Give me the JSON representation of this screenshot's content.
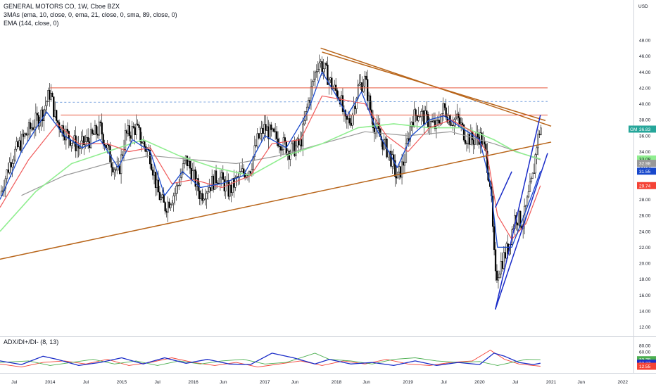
{
  "header": {
    "title": "GENERAL MOTORS CO, 1W, Cboe BZX",
    "indicator_1": "3MAs (ema, 10, close, 0, ema, 21, close, 0, sma, 89, close, 0)",
    "indicator_2": "EMA (144, close, 0)"
  },
  "sub_header": "ADX/DI+/DI- (8, 13)",
  "currency": "USD",
  "colors": {
    "up": "#ffffff",
    "down": "#000000",
    "ema10": "#1848cc",
    "ema21": "#f05a5a",
    "sma89": "#90ee90",
    "ema144": "#999999",
    "channel": "#b8651a",
    "hline": "#e8553a",
    "dashed": "#5b8ed6",
    "wedge": "#1a2cc8",
    "adx": "#1a2cc8",
    "di_plus": "#4caf50",
    "di_minus": "#f44336"
  },
  "chart_data": {
    "type": "candlestick",
    "price_axis": {
      "ticks": [
        "48.00",
        "46.00",
        "44.00",
        "42.00",
        "40.00",
        "38.00",
        "36.00",
        "34.00",
        "32.00",
        "30.00",
        "28.00",
        "26.00",
        "24.00",
        "22.00",
        "20.00",
        "18.00",
        "16.00",
        "14.00",
        "12.00"
      ],
      "range": [
        11.0,
        49.5
      ]
    },
    "time_axis": {
      "ticks": [
        "Jul",
        "2014",
        "Jul",
        "2015",
        "Jul",
        "2016",
        "Jun",
        "2017",
        "Jun",
        "2018",
        "Jun",
        "2019",
        "Jul",
        "2020",
        "Jul",
        "2021",
        "Jun",
        "2022"
      ],
      "tick_dates": [
        2013.5,
        2014.0,
        2014.5,
        2015.0,
        2015.5,
        2016.0,
        2016.42,
        2017.0,
        2017.42,
        2018.0,
        2018.42,
        2019.0,
        2019.5,
        2020.0,
        2020.5,
        2021.0,
        2021.42,
        2022.0
      ],
      "range": [
        2013.3,
        2022.15
      ]
    },
    "price_anchors": [
      [
        2013.3,
        28.5
      ],
      [
        2013.45,
        33
      ],
      [
        2013.65,
        36
      ],
      [
        2013.9,
        39
      ],
      [
        2014.0,
        41.5
      ],
      [
        2014.08,
        38
      ],
      [
        2014.25,
        36
      ],
      [
        2014.4,
        34.5
      ],
      [
        2014.55,
        35.5
      ],
      [
        2014.7,
        37
      ],
      [
        2014.85,
        33
      ],
      [
        2014.95,
        31
      ],
      [
        2015.05,
        36
      ],
      [
        2015.2,
        37
      ],
      [
        2015.3,
        35
      ],
      [
        2015.4,
        33.5
      ],
      [
        2015.5,
        29
      ],
      [
        2015.6,
        27
      ],
      [
        2015.75,
        29
      ],
      [
        2015.9,
        33
      ],
      [
        2016.0,
        31
      ],
      [
        2016.1,
        28.5
      ],
      [
        2016.2,
        29.5
      ],
      [
        2016.35,
        31
      ],
      [
        2016.5,
        29
      ],
      [
        2016.65,
        31
      ],
      [
        2016.8,
        32
      ],
      [
        2016.9,
        35.5
      ],
      [
        2017.0,
        37
      ],
      [
        2017.1,
        36
      ],
      [
        2017.2,
        35.5
      ],
      [
        2017.35,
        34
      ],
      [
        2017.5,
        35
      ],
      [
        2017.6,
        40
      ],
      [
        2017.75,
        45.5
      ],
      [
        2017.85,
        44
      ],
      [
        2017.95,
        42
      ],
      [
        2018.05,
        41
      ],
      [
        2018.12,
        37.5
      ],
      [
        2018.2,
        38
      ],
      [
        2018.3,
        42
      ],
      [
        2018.4,
        43
      ],
      [
        2018.5,
        38
      ],
      [
        2018.6,
        36
      ],
      [
        2018.75,
        33.5
      ],
      [
        2018.85,
        30.5
      ],
      [
        2018.95,
        33
      ],
      [
        2019.05,
        38
      ],
      [
        2019.15,
        39
      ],
      [
        2019.25,
        38
      ],
      [
        2019.4,
        37
      ],
      [
        2019.5,
        39.5
      ],
      [
        2019.6,
        38
      ],
      [
        2019.7,
        38
      ],
      [
        2019.8,
        36
      ],
      [
        2019.9,
        35.5
      ],
      [
        2020.0,
        36
      ],
      [
        2020.08,
        34
      ],
      [
        2020.15,
        30
      ],
      [
        2020.22,
        18
      ],
      [
        2020.3,
        20
      ],
      [
        2020.4,
        22
      ],
      [
        2020.5,
        26
      ],
      [
        2020.6,
        25
      ],
      [
        2020.7,
        29
      ],
      [
        2020.75,
        31
      ],
      [
        2020.8,
        35
      ],
      [
        2020.85,
        37
      ]
    ],
    "last_price": 36.83,
    "price_labels": [
      {
        "text": "GM",
        "value": 36.83,
        "color": "#26a69a"
      },
      {
        "text": "36.83",
        "value": 36.83,
        "color": "#26a69a"
      },
      {
        "text": "33.08",
        "value": 33.08,
        "color": "#90ee90"
      },
      {
        "text": "32.98",
        "value": 32.98,
        "color": "#999999"
      },
      {
        "text": "31.55",
        "value": 31.55,
        "color": "#1848cc"
      },
      {
        "text": "29.74",
        "value": 29.74,
        "color": "#f44336"
      }
    ],
    "ema10": [
      [
        2013.3,
        28
      ],
      [
        2013.6,
        34
      ],
      [
        2013.95,
        39
      ],
      [
        2014.2,
        36
      ],
      [
        2014.45,
        34.5
      ],
      [
        2014.7,
        35.5
      ],
      [
        2014.95,
        32
      ],
      [
        2015.15,
        35.5
      ],
      [
        2015.4,
        34
      ],
      [
        2015.6,
        28.5
      ],
      [
        2015.85,
        31.5
      ],
      [
        2016.1,
        29.5
      ],
      [
        2016.4,
        30
      ],
      [
        2016.7,
        31
      ],
      [
        2017.0,
        36
      ],
      [
        2017.3,
        34.5
      ],
      [
        2017.6,
        39
      ],
      [
        2017.8,
        44
      ],
      [
        2018.0,
        41
      ],
      [
        2018.15,
        38.5
      ],
      [
        2018.35,
        41.5
      ],
      [
        2018.55,
        37
      ],
      [
        2018.85,
        32
      ],
      [
        2019.05,
        36
      ],
      [
        2019.3,
        38
      ],
      [
        2019.5,
        38.5
      ],
      [
        2019.75,
        37
      ],
      [
        2020.0,
        35.5
      ],
      [
        2020.15,
        30
      ],
      [
        2020.25,
        22
      ],
      [
        2020.45,
        22
      ],
      [
        2020.6,
        25.5
      ],
      [
        2020.75,
        29
      ],
      [
        2020.85,
        31.55
      ]
    ],
    "ema21": [
      [
        2013.3,
        27
      ],
      [
        2013.7,
        33
      ],
      [
        2014.1,
        37.5
      ],
      [
        2014.4,
        35
      ],
      [
        2014.8,
        35
      ],
      [
        2015.1,
        34
      ],
      [
        2015.4,
        34.5
      ],
      [
        2015.7,
        30
      ],
      [
        2016.0,
        30.5
      ],
      [
        2016.4,
        29.5
      ],
      [
        2016.8,
        31
      ],
      [
        2017.1,
        35
      ],
      [
        2017.5,
        35.5
      ],
      [
        2017.8,
        41
      ],
      [
        2018.1,
        40.5
      ],
      [
        2018.4,
        40
      ],
      [
        2018.7,
        36
      ],
      [
        2019.0,
        34
      ],
      [
        2019.3,
        37
      ],
      [
        2019.6,
        38
      ],
      [
        2019.9,
        36.5
      ],
      [
        2020.1,
        34
      ],
      [
        2020.25,
        26
      ],
      [
        2020.45,
        23
      ],
      [
        2020.65,
        25
      ],
      [
        2020.85,
        29.74
      ]
    ],
    "sma89": [
      [
        2013.3,
        24
      ],
      [
        2013.8,
        29
      ],
      [
        2014.3,
        32.5
      ],
      [
        2014.8,
        34
      ],
      [
        2015.3,
        35.5
      ],
      [
        2015.8,
        33.5
      ],
      [
        2016.3,
        32
      ],
      [
        2016.8,
        31
      ],
      [
        2017.3,
        33.5
      ],
      [
        2017.8,
        35
      ],
      [
        2018.3,
        37
      ],
      [
        2018.8,
        37.5
      ],
      [
        2019.3,
        37
      ],
      [
        2019.8,
        37
      ],
      [
        2020.2,
        35.5
      ],
      [
        2020.5,
        34
      ],
      [
        2020.85,
        33.08
      ]
    ],
    "ema144": [
      [
        2013.6,
        28.5
      ],
      [
        2014.2,
        31
      ],
      [
        2014.8,
        32.5
      ],
      [
        2015.4,
        33.5
      ],
      [
        2016.0,
        33
      ],
      [
        2016.6,
        32.5
      ],
      [
        2017.2,
        33.5
      ],
      [
        2017.8,
        35
      ],
      [
        2018.4,
        36.5
      ],
      [
        2019.0,
        36
      ],
      [
        2019.6,
        36.5
      ],
      [
        2020.2,
        35
      ],
      [
        2020.85,
        32.98
      ]
    ],
    "trendlines": [
      {
        "kind": "channel",
        "from": [
          2013.3,
          20.5
        ],
        "to": [
          2021.0,
          35.2
        ]
      },
      {
        "kind": "channel",
        "from": [
          2017.78,
          47.0
        ],
        "to": [
          2021.0,
          37.2
        ]
      },
      {
        "kind": "channel",
        "from": [
          2017.8,
          46.5
        ],
        "to": [
          2020.92,
          37.9
        ]
      },
      {
        "kind": "hline",
        "from": [
          2014.0,
          42.0
        ],
        "to": [
          2020.95,
          42.0
        ]
      },
      {
        "kind": "hline",
        "from": [
          2014.15,
          38.6
        ],
        "to": [
          2020.95,
          38.6
        ]
      },
      {
        "kind": "dashed",
        "from": [
          2014.08,
          40.2
        ],
        "to": [
          2020.95,
          40.3
        ]
      },
      {
        "kind": "wedge",
        "from": [
          2020.22,
          14.2
        ],
        "to": [
          2020.85,
          38.6
        ]
      },
      {
        "kind": "wedge",
        "from": [
          2020.22,
          14.2
        ],
        "to": [
          2020.95,
          33.8
        ]
      },
      {
        "kind": "wedge",
        "from": [
          2020.22,
          27.0
        ],
        "to": [
          2020.45,
          31.5
        ]
      }
    ],
    "adx_panel": {
      "range": [
        0,
        80
      ],
      "ticks": [
        "80.00",
        "60.00",
        "40.00",
        "20.00"
      ],
      "labels": [
        {
          "text": "33.78",
          "value": 33.78,
          "color": "#4caf50"
        },
        {
          "text": "22.37",
          "value": 22.37,
          "color": "#1a2cc8"
        },
        {
          "text": "12.55",
          "value": 12.55,
          "color": "#f44336"
        }
      ],
      "adx": [
        [
          2013.3,
          30
        ],
        [
          2013.6,
          18
        ],
        [
          2013.9,
          45
        ],
        [
          2014.1,
          35
        ],
        [
          2014.4,
          15
        ],
        [
          2014.7,
          25
        ],
        [
          2015.0,
          40
        ],
        [
          2015.3,
          20
        ],
        [
          2015.6,
          40
        ],
        [
          2015.9,
          22
        ],
        [
          2016.2,
          35
        ],
        [
          2016.5,
          20
        ],
        [
          2016.8,
          18
        ],
        [
          2017.1,
          55
        ],
        [
          2017.4,
          40
        ],
        [
          2017.7,
          20
        ],
        [
          2017.9,
          35
        ],
        [
          2018.2,
          20
        ],
        [
          2018.5,
          25
        ],
        [
          2018.8,
          15
        ],
        [
          2019.1,
          30
        ],
        [
          2019.4,
          15
        ],
        [
          2019.7,
          25
        ],
        [
          2020.0,
          18
        ],
        [
          2020.2,
          55
        ],
        [
          2020.35,
          45
        ],
        [
          2020.55,
          25
        ],
        [
          2020.75,
          18
        ],
        [
          2020.85,
          22.37
        ]
      ],
      "di_plus": [
        [
          2013.3,
          25
        ],
        [
          2013.7,
          30
        ],
        [
          2014.0,
          15
        ],
        [
          2014.3,
          25
        ],
        [
          2014.6,
          35
        ],
        [
          2014.9,
          20
        ],
        [
          2015.2,
          30
        ],
        [
          2015.5,
          15
        ],
        [
          2015.8,
          30
        ],
        [
          2016.1,
          20
        ],
        [
          2016.4,
          30
        ],
        [
          2016.7,
          35
        ],
        [
          2017.0,
          20
        ],
        [
          2017.3,
          25
        ],
        [
          2017.7,
          55
        ],
        [
          2017.9,
          35
        ],
        [
          2018.2,
          30
        ],
        [
          2018.5,
          20
        ],
        [
          2018.8,
          35
        ],
        [
          2019.1,
          40
        ],
        [
          2019.4,
          30
        ],
        [
          2019.7,
          25
        ],
        [
          2020.0,
          28
        ],
        [
          2020.25,
          15
        ],
        [
          2020.45,
          25
        ],
        [
          2020.65,
          35
        ],
        [
          2020.85,
          33.78
        ]
      ],
      "di_minus": [
        [
          2013.3,
          20
        ],
        [
          2013.6,
          10
        ],
        [
          2013.9,
          25
        ],
        [
          2014.2,
          30
        ],
        [
          2014.5,
          20
        ],
        [
          2014.8,
          35
        ],
        [
          2015.1,
          15
        ],
        [
          2015.4,
          25
        ],
        [
          2015.7,
          40
        ],
        [
          2016.0,
          25
        ],
        [
          2016.3,
          15
        ],
        [
          2016.6,
          25
        ],
        [
          2016.9,
          10
        ],
        [
          2017.2,
          20
        ],
        [
          2017.5,
          30
        ],
        [
          2017.8,
          15
        ],
        [
          2018.1,
          30
        ],
        [
          2018.4,
          20
        ],
        [
          2018.7,
          35
        ],
        [
          2019.0,
          20
        ],
        [
          2019.3,
          15
        ],
        [
          2019.6,
          25
        ],
        [
          2019.9,
          30
        ],
        [
          2020.15,
          65
        ],
        [
          2020.35,
          35
        ],
        [
          2020.55,
          20
        ],
        [
          2020.75,
          15
        ],
        [
          2020.85,
          12.55
        ]
      ]
    }
  }
}
